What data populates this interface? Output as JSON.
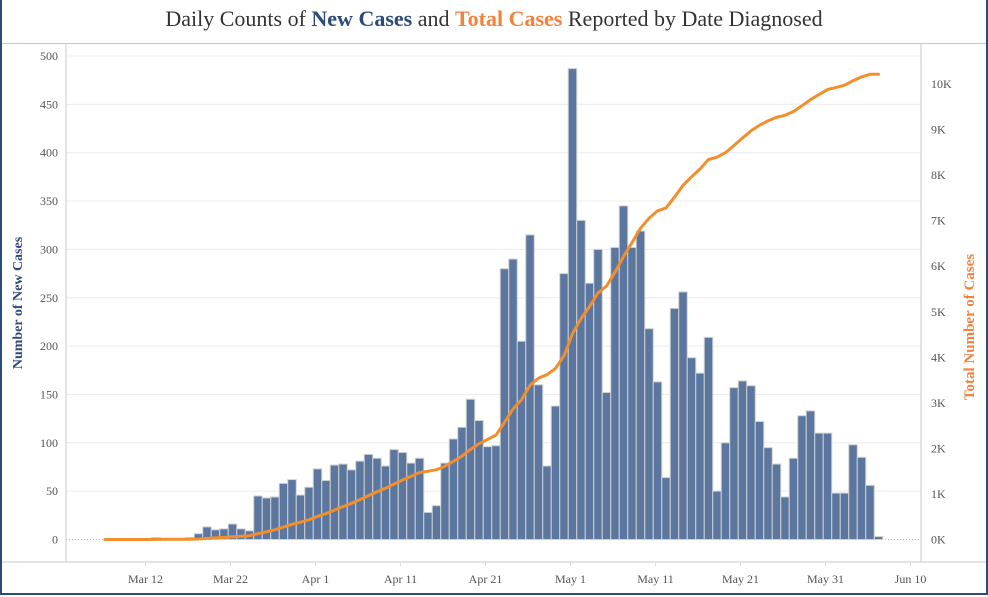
{
  "chart_data": {
    "type": "bar+line",
    "title": {
      "parts": [
        {
          "text": "Daily Counts of ",
          "style": "plain"
        },
        {
          "text": "New Cases",
          "style": "new"
        },
        {
          "text": " and ",
          "style": "plain"
        },
        {
          "text": "Total Cases",
          "style": "total"
        },
        {
          "text": " Reported by Date Diagnosed",
          "style": "plain"
        }
      ]
    },
    "colors": {
      "bars": "#5b77a0",
      "bar_edge": "#d0d0d0",
      "line": "#f28e2b",
      "left_axis_label": "#2c4a7a",
      "right_axis_label": "#f5813c"
    },
    "start_date": "Mar 7",
    "xlabel": "",
    "x_ticks": [
      {
        "label": "Mar 12",
        "day": 5
      },
      {
        "label": "Mar 22",
        "day": 15
      },
      {
        "label": "Apr 1",
        "day": 25
      },
      {
        "label": "Apr 11",
        "day": 35
      },
      {
        "label": "Apr 21",
        "day": 45
      },
      {
        "label": "May 1",
        "day": 55
      },
      {
        "label": "May 11",
        "day": 65
      },
      {
        "label": "May 21",
        "day": 75
      },
      {
        "label": "May 31",
        "day": 85
      },
      {
        "label": "Jun 10",
        "day": 95
      }
    ],
    "x_range_days": [
      -2,
      97
    ],
    "left_axis": {
      "label": "Number of New Cases",
      "ylim": [
        0,
        500
      ],
      "ticks": [
        "0",
        "50",
        "100",
        "150",
        "200",
        "250",
        "300",
        "350",
        "400",
        "450",
        "500"
      ],
      "tick_values": [
        0,
        50,
        100,
        150,
        200,
        250,
        300,
        350,
        400,
        450,
        500
      ]
    },
    "right_axis": {
      "label": "Total Number of Cases",
      "ylim": [
        0,
        10600
      ],
      "ticks": [
        "0K",
        "1K",
        "2K",
        "3K",
        "4K",
        "5K",
        "6K",
        "7K",
        "8K",
        "9K",
        "10K"
      ],
      "tick_values": [
        0,
        1000,
        2000,
        3000,
        4000,
        5000,
        6000,
        7000,
        8000,
        9000,
        10000
      ]
    },
    "grid": true,
    "series": [
      {
        "name": "New Cases",
        "kind": "bar",
        "axis": "left",
        "values": [
          0,
          0,
          0,
          0,
          1,
          0,
          2,
          1,
          0,
          0,
          2,
          6,
          13,
          10,
          11,
          16,
          11,
          9,
          45,
          43,
          44,
          58,
          62,
          46,
          54,
          73,
          61,
          77,
          78,
          72,
          81,
          88,
          84,
          76,
          93,
          90,
          79,
          84,
          28,
          35,
          79,
          104,
          116,
          145,
          123,
          96,
          97,
          280,
          290,
          205,
          315,
          160,
          76,
          138,
          275,
          487,
          330,
          265,
          300,
          152,
          302,
          345,
          302,
          319,
          218,
          163,
          64,
          239,
          256,
          188,
          172,
          209,
          50,
          100,
          157,
          164,
          159,
          122,
          95,
          78,
          44,
          84,
          128,
          133,
          110,
          110,
          48,
          48,
          98,
          85,
          56,
          3
        ]
      },
      {
        "name": "Total Cases",
        "kind": "line",
        "axis": "right",
        "cumulative_of": "New Cases"
      }
    ]
  }
}
